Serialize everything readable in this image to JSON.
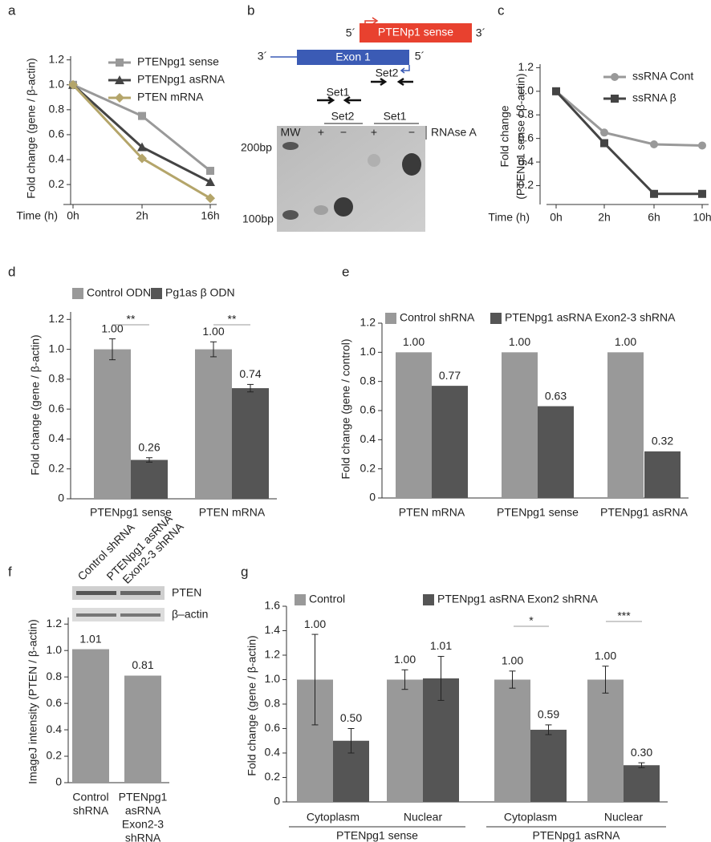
{
  "panel_b": {
    "panel": "b",
    "sense": "PTENp1 sense",
    "exon": "Exon 1",
    "ends": [
      "5´",
      "3´",
      "3´",
      "5´"
    ],
    "primers": [
      "Set2",
      "Set1"
    ],
    "lanes": [
      "MW",
      "+",
      "−",
      "+",
      "−"
    ],
    "treatment": "RNAse A",
    "lane_groups": [
      "Set2",
      "Set1"
    ],
    "markers": [
      "200bp",
      "100bp"
    ]
  },
  "chart_data": [
    {
      "type": "line",
      "panel": "a",
      "ylabel": [
        "Fold change (gene / β-actin)"
      ],
      "xlabel": "Time (h)",
      "categories": [
        "0h",
        "2h",
        "16h"
      ],
      "series": [
        {
          "name": "PTENpg1 sense",
          "color": "#999999",
          "marker": "square",
          "values": [
            1.0,
            0.75,
            0.31
          ]
        },
        {
          "name": "PTENpg1 asRNA",
          "color": "#444444",
          "marker": "triangle",
          "values": [
            1.0,
            0.5,
            0.22
          ]
        },
        {
          "name": "PTEN mRNA",
          "color": "#b4a56a",
          "marker": "diamond",
          "values": [
            1.0,
            0.41,
            0.09
          ]
        }
      ],
      "ylim": [
        0.04,
        1.23
      ],
      "yticks": [
        0.2,
        0.4,
        0.6,
        0.8,
        {
          "value": 1,
          "label": "1.0"
        },
        1.2
      ]
    },
    {
      "type": "line",
      "panel": "c",
      "ylabel": [
        "Fold change",
        "(PTENg1 sense / β-actin)"
      ],
      "xlabel": "Time (h)",
      "categories": [
        "0h",
        "2h",
        "6h",
        "10h"
      ],
      "series": [
        {
          "name": "ssRNA Cont",
          "color": "#999999",
          "marker": "circle",
          "values": [
            1.0,
            0.65,
            0.55,
            0.54
          ]
        },
        {
          "name": "ssRNA β",
          "color": "#444444",
          "marker": "square",
          "values": [
            1.0,
            0.56,
            0.13,
            0.13
          ]
        }
      ],
      "ylim": [
        0.04,
        1.23
      ],
      "yticks": [
        0.2,
        0.4,
        0.6,
        0.8,
        {
          "value": 1,
          "label": "1.0"
        },
        1.2
      ]
    },
    {
      "type": "bar",
      "panel": "d",
      "ylabel": [
        "Fold change (gene / β-actin)"
      ],
      "categories": [
        "PTENpg1 sense",
        "PTEN mRNA"
      ],
      "series": [
        {
          "name": "Control ODN",
          "color": "#999999",
          "values": [
            1.0,
            1.0
          ],
          "errors": [
            0.07,
            0.05
          ],
          "value_labels": [
            "1.00",
            "1.00"
          ]
        },
        {
          "name": "Pg1as β ODN",
          "color": "#555555",
          "values": [
            0.26,
            0.74
          ],
          "errors": [
            0.015,
            0.025
          ],
          "value_labels": [
            "0.26",
            "0.74"
          ]
        }
      ],
      "annotations": [
        "**",
        "**"
      ],
      "ylim": [
        0,
        1.25
      ],
      "yticks": [
        0,
        0.2,
        0.4,
        0.6,
        0.8,
        {
          "value": 1,
          "label": "1.0"
        },
        1.2
      ]
    },
    {
      "type": "bar",
      "panel": "e",
      "ylabel": [
        "Fold change (gene / control)"
      ],
      "categories": [
        "PTEN mRNA",
        "PTENpg1 sense",
        "PTENpg1 asRNA"
      ],
      "series": [
        {
          "name": "Control shRNA",
          "color": "#999999",
          "values": [
            1.0,
            1.0,
            1.0
          ],
          "value_labels": [
            "1.00",
            "1.00",
            "1.00"
          ]
        },
        {
          "name": "PTENpg1 asRNA Exon2-3 shRNA",
          "color": "#555555",
          "values": [
            0.77,
            0.63,
            0.32
          ],
          "value_labels": [
            "0.77",
            "0.63",
            "0.32"
          ]
        }
      ],
      "ylim": [
        0,
        1.2
      ],
      "yticks": [
        0,
        0.2,
        0.4,
        0.6,
        0.8,
        {
          "value": 1,
          "label": "1.0"
        },
        1.2
      ]
    },
    {
      "type": "bar",
      "panel": "f",
      "ylabel": [
        "ImageJ intensity (PTEN / β-actin)"
      ],
      "categories": [
        [
          "Control",
          "shRNA"
        ],
        [
          "PTENpg1",
          "asRNA",
          "Exon2-3",
          "shRNA"
        ]
      ],
      "color": "#999999",
      "values": [
        1.01,
        0.81
      ],
      "value_labels": [
        "1.01",
        "0.81"
      ],
      "blot": {
        "lanes": [
          [
            "Control shRNA"
          ],
          [
            "PTENpg1 asRNA",
            "Exon2-3 shRNA"
          ]
        ],
        "bands": [
          "PTEN",
          "β–actin"
        ]
      },
      "ylim": [
        0,
        1.25
      ],
      "yticks": [
        0,
        0.2,
        0.4,
        0.6,
        0.8,
        {
          "value": 1,
          "label": "1.0"
        },
        1.2
      ]
    },
    {
      "type": "bar",
      "panel": "g",
      "ylabel": [
        "Fold change (gene / β-actin)"
      ],
      "categories": [
        "Cytoplasm",
        "Nuclear",
        "Cytoplasm",
        "Nuclear"
      ],
      "groups": [
        "PTENpg1 sense",
        "PTENpg1 asRNA"
      ],
      "series": [
        {
          "name": "Control",
          "color": "#999999",
          "values": [
            1.0,
            1.0,
            1.0,
            1.0
          ],
          "errors": [
            0.37,
            0.08,
            0.07,
            0.11
          ],
          "value_labels": [
            "1.00",
            "1.00",
            "1.00",
            "1.00"
          ]
        },
        {
          "name": "PTENpg1 asRNA Exon2 shRNA",
          "color": "#555555",
          "values": [
            0.5,
            1.01,
            0.59,
            0.3
          ],
          "errors": [
            0.1,
            0.18,
            0.04,
            0.02
          ],
          "value_labels": [
            "0.50",
            "1.01",
            "0.59",
            "0.30"
          ]
        }
      ],
      "annotations": [
        "*",
        "***"
      ],
      "ylim": [
        0,
        1.6
      ],
      "yticks": [
        0,
        0.2,
        0.4,
        0.6,
        0.8,
        {
          "value": 1,
          "label": "1.0"
        },
        1.2,
        1.4,
        1.6
      ]
    }
  ]
}
